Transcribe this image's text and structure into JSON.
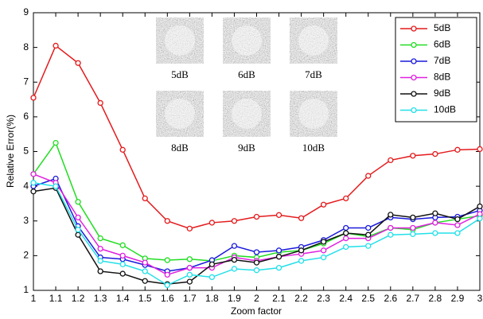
{
  "chart_data": {
    "type": "line",
    "x_label": "Zoom factor",
    "y_label": "Relative Error(%)",
    "x": [
      1,
      1.1,
      1.2,
      1.3,
      1.4,
      1.5,
      1.6,
      1.7,
      1.8,
      1.9,
      2,
      2.1,
      2.2,
      2.3,
      2.4,
      2.5,
      2.6,
      2.7,
      2.8,
      2.9,
      3
    ],
    "xlim": [
      1,
      3
    ],
    "xticks": [
      1,
      1.1,
      1.2,
      1.3,
      1.4,
      1.5,
      1.6,
      1.7,
      1.8,
      1.9,
      2,
      2.1,
      2.2,
      2.3,
      2.4,
      2.5,
      2.6,
      2.7,
      2.8,
      2.9,
      3
    ],
    "ylim": [
      1,
      9
    ],
    "yticks": [
      1,
      2,
      3,
      4,
      5,
      6,
      7,
      8,
      9
    ],
    "legend": "upper right",
    "image_labels": [
      "5dB",
      "6dB",
      "7dB",
      "8dB",
      "9dB",
      "10dB"
    ],
    "series": [
      {
        "name": "5dB",
        "color": "#e41a1c",
        "values": [
          6.55,
          8.05,
          7.55,
          6.4,
          5.05,
          3.65,
          3.0,
          2.78,
          2.95,
          3.0,
          3.12,
          3.17,
          3.08,
          3.47,
          3.65,
          4.3,
          4.75,
          4.88,
          4.93,
          5.05,
          5.07
        ]
      },
      {
        "name": "6dB",
        "color": "#22dd22",
        "values": [
          4.35,
          5.25,
          3.55,
          2.5,
          2.3,
          1.92,
          1.87,
          1.9,
          1.85,
          2.0,
          1.95,
          2.1,
          2.15,
          2.35,
          2.65,
          2.55,
          2.8,
          2.75,
          2.95,
          3.05,
          3.15
        ]
      },
      {
        "name": "7dB",
        "color": "#1a1adc",
        "values": [
          4.0,
          4.22,
          2.85,
          1.95,
          1.9,
          1.73,
          1.55,
          1.65,
          1.87,
          2.28,
          2.1,
          2.15,
          2.25,
          2.45,
          2.8,
          2.8,
          3.1,
          3.05,
          3.1,
          3.12,
          3.3
        ]
      },
      {
        "name": "8dB",
        "color": "#e020e0",
        "values": [
          4.35,
          4.1,
          3.1,
          2.2,
          2.0,
          1.8,
          1.45,
          1.65,
          1.65,
          1.95,
          1.85,
          1.97,
          2.05,
          2.15,
          2.5,
          2.5,
          2.8,
          2.8,
          2.95,
          2.88,
          3.2
        ]
      },
      {
        "name": "9dB",
        "color": "#111111",
        "values": [
          3.85,
          3.95,
          2.6,
          1.55,
          1.48,
          1.27,
          1.18,
          1.25,
          1.75,
          1.88,
          1.8,
          1.97,
          2.15,
          2.4,
          2.65,
          2.6,
          3.18,
          3.1,
          3.22,
          3.05,
          3.42
        ]
      },
      {
        "name": "10dB",
        "color": "#22e0e8",
        "values": [
          4.1,
          4.0,
          2.75,
          1.85,
          1.75,
          1.55,
          1.15,
          1.45,
          1.38,
          1.62,
          1.58,
          1.65,
          1.85,
          1.95,
          2.25,
          2.28,
          2.6,
          2.62,
          2.65,
          2.65,
          3.07
        ]
      }
    ]
  }
}
